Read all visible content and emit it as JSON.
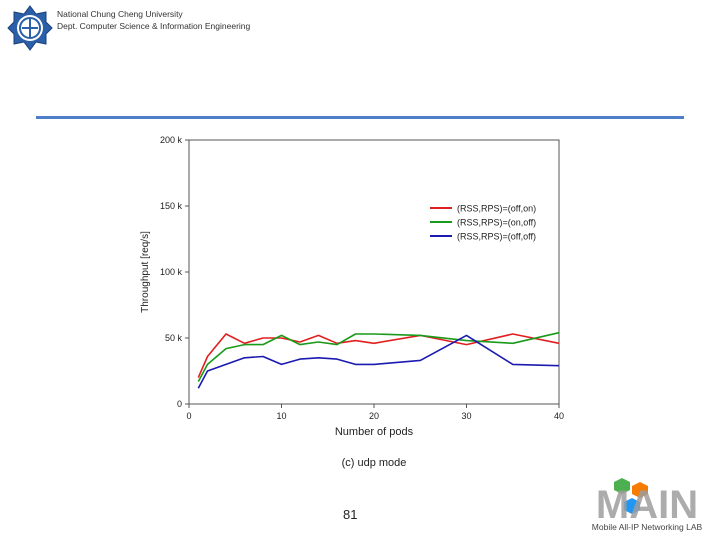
{
  "header": {
    "university": "National Chung Cheng University",
    "department": "Dept. Computer Science & Information Engineering"
  },
  "footer": {
    "page_number": "81",
    "lab_logo_text": "MAIN",
    "lab_name": "Mobile All-IP Networking LAB"
  },
  "colors": {
    "divider": "#4f7fc8",
    "red": "#e02020",
    "green": "#1a9a1a",
    "blue": "#1a1ab0"
  },
  "chart_data": {
    "type": "line",
    "title": "",
    "caption": "(c) udp mode",
    "xlabel": "Number of pods",
    "ylabel": "Throughput [req/s]",
    "xlim": [
      0,
      40
    ],
    "ylim": [
      0,
      200000
    ],
    "xticks": [
      0,
      10,
      20,
      30,
      40
    ],
    "xtick_labels": [
      "0",
      "10",
      "20",
      "30",
      "40"
    ],
    "yticks": [
      0,
      50000,
      100000,
      150000,
      200000
    ],
    "ytick_labels": [
      "0",
      "50 k",
      "100 k",
      "150 k",
      "200 k"
    ],
    "grid": false,
    "legend_position": "top-right",
    "series": [
      {
        "name": "(RSS,RPS)=(off,on)",
        "color": "#e02020",
        "x": [
          1,
          2,
          4,
          6,
          8,
          10,
          12,
          14,
          16,
          18,
          20,
          25,
          30,
          35,
          40
        ],
        "y": [
          20000,
          36000,
          53000,
          46000,
          50000,
          50000,
          47000,
          52000,
          46000,
          48000,
          46000,
          52000,
          45000,
          53000,
          46000
        ]
      },
      {
        "name": "(RSS,RPS)=(on,off)",
        "color": "#1a9a1a",
        "x": [
          1,
          2,
          4,
          6,
          8,
          10,
          12,
          14,
          16,
          18,
          20,
          25,
          30,
          35,
          40
        ],
        "y": [
          17000,
          30000,
          42000,
          45000,
          45000,
          52000,
          45000,
          47000,
          45000,
          53000,
          53000,
          52000,
          48000,
          46000,
          54000
        ]
      },
      {
        "name": "(RSS,RPS)=(off,off)",
        "color": "#1a1ab0",
        "x": [
          1,
          2,
          4,
          6,
          8,
          10,
          12,
          14,
          16,
          18,
          20,
          25,
          30,
          35,
          40
        ],
        "y": [
          12000,
          25000,
          30000,
          35000,
          36000,
          30000,
          34000,
          35000,
          34000,
          30000,
          30000,
          33000,
          52000,
          30000,
          29000
        ]
      }
    ]
  }
}
